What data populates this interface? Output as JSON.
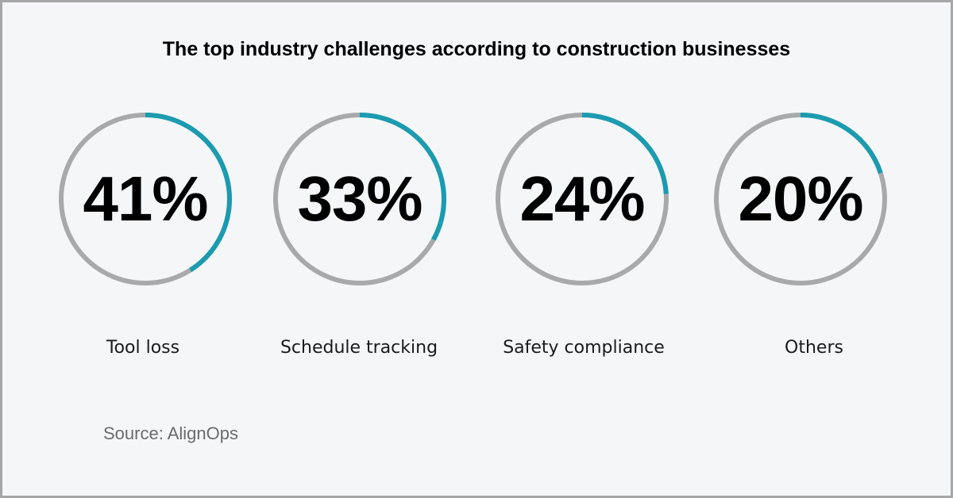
{
  "title": "The top industry challenges according to construction businesses",
  "source": "Source: AlignOps",
  "colors": {
    "track": "#a7a9ab",
    "accent": "#1a9bb0",
    "background": "#f4f6f8",
    "border": "#a6a6a6"
  },
  "chart_data": {
    "type": "pie",
    "title": "The top industry challenges according to construction businesses",
    "categories": [
      "Tool loss",
      "Schedule tracking",
      "Safety compliance",
      "Others"
    ],
    "values": [
      41,
      33,
      24,
      20
    ],
    "value_labels": [
      "41%",
      "33%",
      "24%",
      "20%"
    ],
    "unit": "%",
    "source": "Source: AlignOps"
  }
}
